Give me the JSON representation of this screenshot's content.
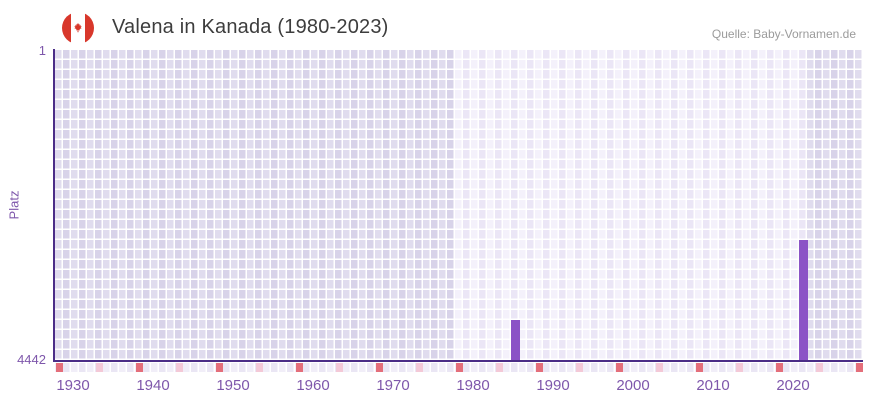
{
  "header": {
    "title": "Valena in Kanada (1980-2023)",
    "source": "Quelle: Baby-Vornamen.de",
    "flag_icon": "canada-flag-icon"
  },
  "chart_data": {
    "type": "bar",
    "title": "Valena in Kanada (1980-2023)",
    "xlabel": "",
    "ylabel": "Platz",
    "y_axis": {
      "top_label": "1",
      "bottom_label": "4442",
      "min": 1,
      "max": 4442,
      "inverted": true
    },
    "x_axis": {
      "start_year": 1930,
      "end_year": 2030,
      "tick_labels": [
        "1930",
        "1940",
        "1950",
        "1960",
        "1970",
        "1980",
        "1990",
        "2000",
        "2010",
        "2020"
      ]
    },
    "highlight_band": {
      "from": 1980,
      "to": 2023
    },
    "bars": [
      {
        "year": 1986,
        "platz": 3870
      },
      {
        "year": 2022,
        "platz": 2720
      }
    ],
    "decade_markers": [
      1930,
      1940,
      1950,
      1960,
      1970,
      1980,
      1990,
      2000,
      2010,
      2020,
      2030
    ],
    "half_decade_markers": [
      1935,
      1945,
      1955,
      1965,
      1975,
      1985,
      1995,
      2005,
      2015,
      2025
    ],
    "grid": true,
    "legend": false,
    "colors": {
      "bar": "#8b53c6",
      "axis_line": "#4b2d87",
      "tick_text": "#7e57ab",
      "decade_marker": "#e46e7a",
      "half_decade_marker": "#f4c9d7",
      "band_dark_a": "#e0dcee",
      "band_dark_b": "#d8d3e9",
      "band_light_a": "#f4f1fb",
      "band_light_b": "#ebe6f6",
      "flag_red": "#d8372b",
      "title_text": "#3d3d3d",
      "source_text": "#9b9b9b"
    }
  }
}
